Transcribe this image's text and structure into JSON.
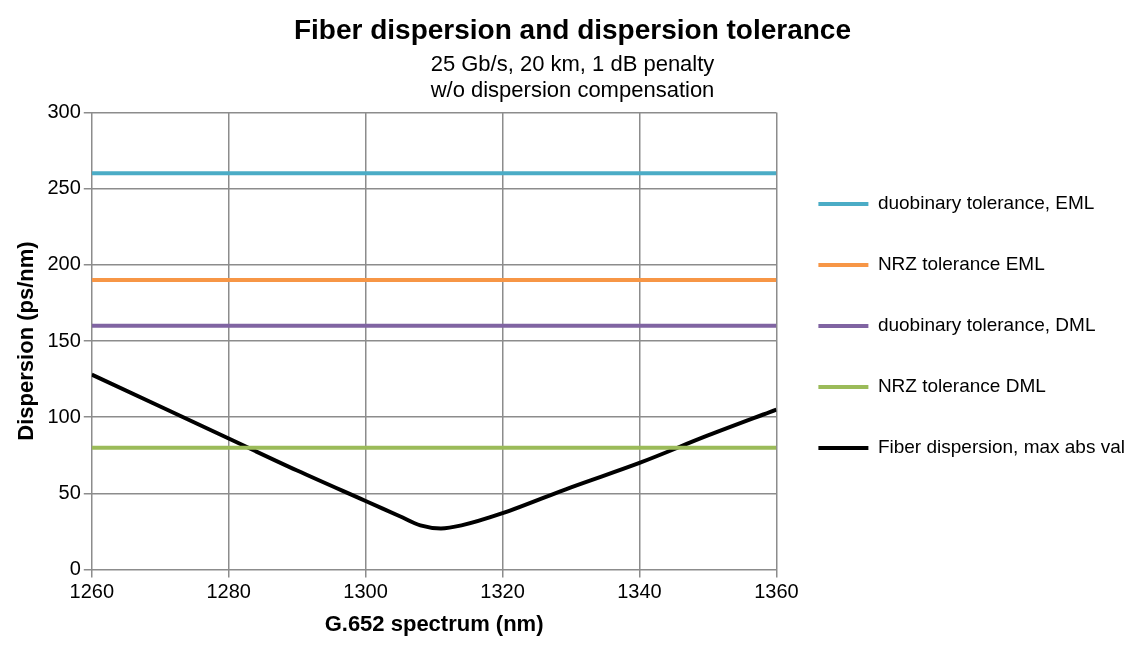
{
  "chart_data": {
    "type": "line",
    "title": "Fiber dispersion and dispersion tolerance",
    "subtitle": "25 Gb/s, 20 km, 1 dB penalty\nw/o dispersion compensation",
    "xlabel": "G.652 spectrum (nm)",
    "ylabel": "Dispersion (ps/nm)",
    "xlim": [
      1260,
      1360
    ],
    "xticks": [
      1260,
      1280,
      1300,
      1320,
      1340,
      1360
    ],
    "ylim": [
      0,
      300
    ],
    "yticks": [
      0,
      50,
      100,
      150,
      200,
      250,
      300
    ],
    "grid": true,
    "legend": "right",
    "marker": "none",
    "line_style": "solid",
    "series": [
      {
        "name": "duobinary tolerance, EML",
        "color": "#4bacc6",
        "x": [
          1260,
          1360
        ],
        "values": [
          260,
          260
        ]
      },
      {
        "name": "NRZ tolerance EML",
        "color": "#f79646",
        "x": [
          1260,
          1360
        ],
        "values": [
          190,
          190
        ]
      },
      {
        "name": "duobinary tolerance, DML",
        "color": "#8064a2",
        "x": [
          1260,
          1360
        ],
        "values": [
          160,
          160
        ]
      },
      {
        "name": "NRZ tolerance DML",
        "color": "#9bbb59",
        "x": [
          1260,
          1360
        ],
        "values": [
          80,
          80
        ]
      },
      {
        "name": "Fiber dispersion, max abs val",
        "color": "#000000",
        "x": [
          1260,
          1270,
          1280,
          1290,
          1300,
          1305,
          1308,
          1311,
          1314,
          1320,
          1330,
          1340,
          1350,
          1360
        ],
        "values": [
          128,
          107,
          86,
          65,
          45,
          35,
          29,
          27,
          29,
          37,
          54,
          70,
          88,
          105
        ]
      }
    ]
  }
}
